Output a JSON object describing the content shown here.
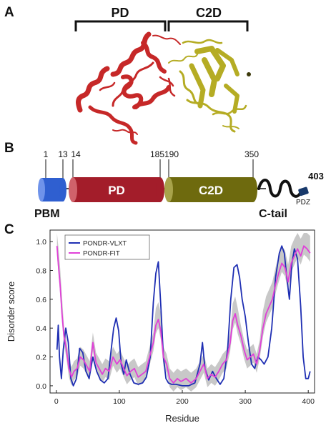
{
  "panels": {
    "a": {
      "letter": "A",
      "pd_label": "PD",
      "c2d_label": "C2D",
      "pd_color": "#c62828",
      "c2d_color": "#b5ac24"
    },
    "b": {
      "letter": "B",
      "boundaries": [
        "1",
        "13",
        "14",
        "185",
        "190",
        "350",
        "403"
      ],
      "pd_label": "PD",
      "c2d_label": "C2D",
      "pbm_label": "PBM",
      "ctail_label": "C-tail",
      "pdz_label": "PDZ",
      "pbm_color": "#2f5fd0",
      "pd_color": "#a31d2a",
      "c2d_color": "#6e6a0e",
      "pdz_color": "#18396b"
    },
    "c": {
      "letter": "C"
    }
  },
  "chart_data": {
    "type": "line",
    "xlabel": "Residue",
    "ylabel": "Disorder score",
    "xlim": [
      -10,
      410
    ],
    "ylim": [
      -0.05,
      1.08
    ],
    "xticks": [
      0,
      100,
      200,
      300,
      400
    ],
    "yticks": [
      0.0,
      0.2,
      0.4,
      0.6,
      0.8,
      1.0
    ],
    "ytick_labels": [
      "0.0",
      "0.2",
      "0.4",
      "0.6",
      "0.8",
      "1.0"
    ],
    "legend_position": "top-left",
    "series": [
      {
        "name": "PONDR-VLXT",
        "color": "#1f2fb3",
        "x": [
          1,
          3,
          5,
          8,
          11,
          15,
          19,
          23,
          27,
          32,
          37,
          42,
          47,
          52,
          58,
          64,
          70,
          76,
          82,
          87,
          91,
          95,
          99,
          103,
          107,
          111,
          117,
          123,
          130,
          137,
          143,
          149,
          154,
          158,
          162,
          166,
          170,
          174,
          178,
          183,
          190,
          200,
          210,
          220,
          228,
          232,
          236,
          242,
          248,
          254,
          260,
          266,
          272,
          277,
          282,
          287,
          291,
          295,
          300,
          305,
          310,
          315,
          320,
          325,
          330,
          336,
          342,
          348,
          354,
          358,
          362,
          366,
          370,
          374,
          378,
          383,
          388,
          392,
          396,
          400,
          403
        ],
        "y": [
          0.25,
          0.42,
          0.2,
          0.05,
          0.25,
          0.4,
          0.3,
          0.05,
          0.0,
          0.05,
          0.26,
          0.23,
          0.1,
          0.05,
          0.2,
          0.1,
          0.04,
          0.02,
          0.05,
          0.25,
          0.4,
          0.47,
          0.38,
          0.15,
          0.08,
          0.18,
          0.08,
          0.02,
          0.01,
          0.02,
          0.06,
          0.2,
          0.58,
          0.78,
          0.86,
          0.55,
          0.2,
          0.05,
          0.02,
          0.01,
          0.01,
          0.0,
          0.0,
          0.02,
          0.15,
          0.3,
          0.12,
          0.04,
          0.1,
          0.05,
          0.01,
          0.05,
          0.25,
          0.6,
          0.82,
          0.84,
          0.75,
          0.6,
          0.48,
          0.3,
          0.15,
          0.12,
          0.2,
          0.18,
          0.15,
          0.2,
          0.4,
          0.75,
          0.92,
          0.97,
          0.92,
          0.75,
          0.6,
          0.85,
          0.95,
          0.88,
          0.55,
          0.2,
          0.05,
          0.05,
          0.1
        ]
      },
      {
        "name": "PONDR-FIT",
        "color": "#e040d8",
        "x": [
          1,
          3,
          6,
          9,
          12,
          16,
          20,
          24,
          28,
          33,
          38,
          43,
          48,
          53,
          58,
          63,
          68,
          73,
          78,
          84,
          90,
          96,
          101,
          106,
          112,
          118,
          124,
          130,
          136,
          142,
          148,
          154,
          158,
          162,
          166,
          170,
          175,
          180,
          186,
          192,
          198,
          206,
          214,
          222,
          228,
          234,
          240,
          246,
          252,
          258,
          264,
          270,
          276,
          280,
          284,
          288,
          293,
          298,
          303,
          308,
          313,
          318,
          323,
          328,
          333,
          338,
          343,
          348,
          353,
          358,
          363,
          368,
          373,
          378,
          383,
          388,
          393,
          398,
          403
        ],
        "y": [
          0.97,
          0.85,
          0.7,
          0.5,
          0.35,
          0.25,
          0.12,
          0.06,
          0.1,
          0.12,
          0.2,
          0.18,
          0.14,
          0.1,
          0.3,
          0.16,
          0.12,
          0.08,
          0.12,
          0.1,
          0.2,
          0.15,
          0.18,
          0.13,
          0.07,
          0.1,
          0.12,
          0.06,
          0.08,
          0.1,
          0.2,
          0.3,
          0.42,
          0.46,
          0.38,
          0.2,
          0.15,
          0.05,
          0.02,
          0.05,
          0.03,
          0.05,
          0.02,
          0.05,
          0.1,
          0.15,
          0.05,
          0.08,
          0.06,
          0.1,
          0.15,
          0.18,
          0.3,
          0.45,
          0.5,
          0.42,
          0.35,
          0.25,
          0.18,
          0.2,
          0.22,
          0.15,
          0.25,
          0.4,
          0.5,
          0.55,
          0.6,
          0.7,
          0.78,
          0.85,
          0.82,
          0.72,
          0.85,
          0.9,
          0.95,
          0.9,
          0.97,
          0.95,
          0.92
        ]
      }
    ]
  }
}
